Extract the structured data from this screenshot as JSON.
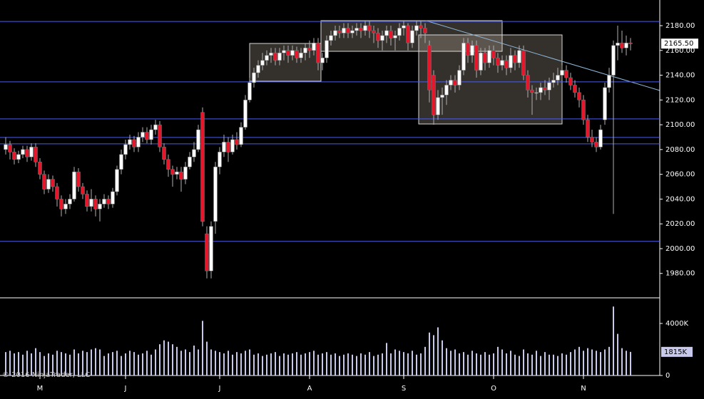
{
  "chart_data": [
    {
      "type": "candlestick",
      "watermark": "© 2016 NinjaTrader, LLC",
      "categories": [
        null,
        null,
        null,
        null,
        null,
        null,
        null,
        null,
        "M",
        null,
        null,
        null,
        null,
        null,
        null,
        null,
        null,
        null,
        null,
        null,
        null,
        null,
        null,
        null,
        null,
        null,
        null,
        null,
        "J",
        null,
        null,
        null,
        null,
        null,
        null,
        null,
        null,
        null,
        null,
        null,
        null,
        null,
        null,
        null,
        null,
        null,
        null,
        null,
        null,
        null,
        "J",
        null,
        null,
        null,
        null,
        null,
        null,
        null,
        null,
        null,
        null,
        null,
        null,
        null,
        null,
        null,
        null,
        null,
        null,
        null,
        null,
        "A",
        null,
        null,
        null,
        null,
        null,
        null,
        null,
        null,
        null,
        null,
        null,
        null,
        null,
        null,
        null,
        null,
        null,
        null,
        null,
        null,
        null,
        "S",
        null,
        null,
        null,
        null,
        null,
        null,
        null,
        null,
        null,
        null,
        null,
        null,
        null,
        null,
        null,
        null,
        null,
        null,
        null,
        null,
        "O",
        null,
        null,
        null,
        null,
        null,
        null,
        null,
        null,
        null,
        null,
        null,
        null,
        null,
        null,
        null,
        null,
        null,
        null,
        null,
        null,
        "N",
        null,
        null,
        null,
        null,
        null,
        null,
        null,
        null,
        null,
        null,
        null
      ],
      "open": [
        2080,
        2084,
        2078,
        2072,
        2076,
        2080,
        2074,
        2082,
        2070,
        2060,
        2048,
        2056,
        2050,
        2040,
        2032,
        2036,
        2040,
        2062,
        2050,
        2044,
        2034,
        2040,
        2032,
        2036,
        2040,
        2036,
        2046,
        2064,
        2076,
        2084,
        2088,
        2082,
        2090,
        2094,
        2088,
        2096,
        2100,
        2082,
        2072,
        2064,
        2060,
        2062,
        2056,
        2066,
        2074,
        2080,
        2110,
        2012,
        1982,
        2022,
        2066,
        2078,
        2086,
        2078,
        2088,
        2084,
        2098,
        2120,
        2134,
        2142,
        2148,
        2152,
        2156,
        2158,
        2152,
        2158,
        2160,
        2156,
        2160,
        2154,
        2158,
        2162,
        2160,
        2166,
        2150,
        2154,
        2168,
        2172,
        2176,
        2174,
        2178,
        2174,
        2176,
        2178,
        2176,
        2180,
        2176,
        2174,
        2168,
        2172,
        2176,
        2170,
        2172,
        2178,
        2180,
        2166,
        2176,
        2180,
        2178,
        2164,
        2140,
        2108,
        2122,
        2124,
        2132,
        2136,
        2132,
        2144,
        2166,
        2156,
        2164,
        2144,
        2158,
        2150,
        2160,
        2154,
        2148,
        2152,
        2146,
        2156,
        2150,
        2160,
        2140,
        2128,
        2126,
        2126,
        2130,
        2128,
        2134,
        2136,
        2140,
        2144,
        2138,
        2132,
        2126,
        2120,
        2104,
        2090,
        2086,
        2082,
        2104,
        2130,
        2140,
        2164,
        2166,
        2162,
        2166
      ],
      "high": [
        2090,
        2087,
        2081,
        2079,
        2083,
        2083,
        2085,
        2085,
        2073,
        2063,
        2060,
        2059,
        2053,
        2043,
        2040,
        2044,
        2066,
        2065,
        2053,
        2047,
        2048,
        2043,
        2040,
        2044,
        2043,
        2049,
        2067,
        2080,
        2088,
        2092,
        2091,
        2094,
        2098,
        2098,
        2100,
        2104,
        2103,
        2085,
        2076,
        2067,
        2066,
        2066,
        2070,
        2078,
        2086,
        2100,
        2114,
        2018,
        2022,
        2070,
        2082,
        2092,
        2090,
        2092,
        2094,
        2102,
        2124,
        2138,
        2146,
        2152,
        2158,
        2160,
        2162,
        2162,
        2162,
        2164,
        2164,
        2164,
        2163,
        2162,
        2166,
        2168,
        2170,
        2170,
        2158,
        2172,
        2176,
        2180,
        2180,
        2182,
        2182,
        2180,
        2182,
        2182,
        2184,
        2184,
        2180,
        2178,
        2176,
        2180,
        2180,
        2176,
        2182,
        2184,
        2182,
        2180,
        2184,
        2184,
        2182,
        2168,
        2144,
        2128,
        2130,
        2136,
        2140,
        2140,
        2148,
        2170,
        2170,
        2168,
        2168,
        2162,
        2162,
        2164,
        2164,
        2158,
        2156,
        2156,
        2162,
        2160,
        2164,
        2164,
        2144,
        2132,
        2130,
        2134,
        2136,
        2138,
        2142,
        2146,
        2148,
        2148,
        2142,
        2136,
        2130,
        2124,
        2108,
        2096,
        2090,
        2100,
        2134,
        2146,
        2168,
        2180,
        2176,
        2172,
        2170
      ],
      "low": [
        2076,
        2072,
        2068,
        2069,
        2073,
        2070,
        2071,
        2066,
        2056,
        2044,
        2045,
        2046,
        2034,
        2026,
        2028,
        2032,
        2038,
        2046,
        2040,
        2030,
        2030,
        2026,
        2022,
        2033,
        2032,
        2033,
        2043,
        2060,
        2072,
        2080,
        2078,
        2078,
        2086,
        2085,
        2084,
        2092,
        2078,
        2068,
        2058,
        2050,
        2056,
        2046,
        2052,
        2064,
        2070,
        2078,
        2018,
        1976,
        1976,
        2012,
        2060,
        2074,
        2070,
        2076,
        2080,
        2082,
        2096,
        2118,
        2130,
        2138,
        2144,
        2148,
        2150,
        2148,
        2148,
        2152,
        2150,
        2152,
        2150,
        2150,
        2152,
        2154,
        2156,
        2144,
        2144,
        2150,
        2164,
        2168,
        2170,
        2170,
        2170,
        2170,
        2172,
        2170,
        2172,
        2170,
        2166,
        2162,
        2160,
        2166,
        2164,
        2160,
        2168,
        2172,
        2160,
        2162,
        2172,
        2170,
        2166,
        2118,
        2100,
        2104,
        2108,
        2116,
        2128,
        2126,
        2128,
        2140,
        2150,
        2150,
        2138,
        2140,
        2144,
        2146,
        2148,
        2142,
        2144,
        2140,
        2142,
        2144,
        2146,
        2136,
        2122,
        2108,
        2120,
        2120,
        2124,
        2120,
        2130,
        2132,
        2136,
        2134,
        2128,
        2122,
        2114,
        2100,
        2086,
        2082,
        2078,
        2080,
        2100,
        2126,
        2028,
        2152,
        2158,
        2156,
        2160
      ],
      "close": [
        2084,
        2078,
        2072,
        2076,
        2080,
        2074,
        2082,
        2070,
        2060,
        2048,
        2056,
        2050,
        2040,
        2032,
        2036,
        2040,
        2062,
        2050,
        2044,
        2034,
        2040,
        2032,
        2036,
        2040,
        2036,
        2046,
        2064,
        2076,
        2084,
        2088,
        2082,
        2090,
        2094,
        2088,
        2096,
        2100,
        2082,
        2072,
        2064,
        2060,
        2062,
        2056,
        2066,
        2074,
        2080,
        2096,
        2022,
        1982,
        2018,
        2066,
        2078,
        2086,
        2078,
        2088,
        2084,
        2098,
        2120,
        2134,
        2142,
        2148,
        2152,
        2156,
        2158,
        2152,
        2158,
        2160,
        2156,
        2160,
        2154,
        2158,
        2162,
        2160,
        2166,
        2150,
        2154,
        2168,
        2172,
        2176,
        2174,
        2178,
        2174,
        2176,
        2178,
        2176,
        2180,
        2176,
        2174,
        2168,
        2172,
        2176,
        2170,
        2172,
        2178,
        2180,
        2166,
        2176,
        2180,
        2178,
        2174,
        2128,
        2108,
        2122,
        2124,
        2132,
        2136,
        2132,
        2144,
        2166,
        2156,
        2164,
        2144,
        2158,
        2150,
        2160,
        2154,
        2148,
        2152,
        2146,
        2156,
        2150,
        2160,
        2140,
        2128,
        2126,
        2126,
        2130,
        2128,
        2134,
        2136,
        2140,
        2144,
        2138,
        2132,
        2126,
        2120,
        2104,
        2090,
        2086,
        2082,
        2096,
        2130,
        2140,
        2164,
        2166,
        2162,
        2166,
        2165.5
      ],
      "up_color": "#ffffff",
      "down_color": "#e8162b",
      "wick_color": "#b0b0b0",
      "levels": [
        2183.4,
        2134.6,
        2104.7,
        2089.8,
        2084.6,
        2005.9
      ],
      "level_color": "#4a5ee8",
      "current_label": {
        "value": 2165.5,
        "label": "2165.50"
      },
      "ylim": [
        1960.3,
        2200.7
      ],
      "yticks": [
        {
          "value": 1980,
          "label": "1980.00"
        },
        {
          "value": 2000,
          "label": "2000.00"
        },
        {
          "value": 2020,
          "label": "2020.00"
        },
        {
          "value": 2040,
          "label": "2040.00"
        },
        {
          "value": 2060,
          "label": "2060.00"
        },
        {
          "value": 2080,
          "label": "2080.00"
        },
        {
          "value": 2100,
          "label": "2100.00"
        },
        {
          "value": 2120,
          "label": "2120.00"
        },
        {
          "value": 2140,
          "label": "2140.00"
        },
        {
          "value": 2160,
          "label": "2160.00"
        },
        {
          "value": 2180,
          "label": "2180.00"
        }
      ]
    },
    {
      "type": "bar",
      "values": [
        1800,
        1900,
        1700,
        1800,
        1600,
        1900,
        1700,
        2100,
        1800,
        1500,
        1700,
        1600,
        1900,
        1800,
        1700,
        1600,
        2000,
        1700,
        1900,
        1800,
        2000,
        2100,
        2000,
        1500,
        1700,
        1800,
        1900,
        1500,
        1700,
        1900,
        1800,
        1600,
        1700,
        1900,
        1600,
        2000,
        2400,
        2700,
        2600,
        2400,
        2200,
        1900,
        2000,
        1800,
        2300,
        2000,
        4200,
        2600,
        2000,
        1900,
        1800,
        1700,
        1900,
        1600,
        1800,
        1700,
        1900,
        2000,
        1600,
        1700,
        1500,
        1600,
        1700,
        1800,
        1500,
        1700,
        1600,
        1700,
        1800,
        1600,
        1700,
        1800,
        1900,
        1600,
        1700,
        1800,
        1600,
        1700,
        1500,
        1600,
        1700,
        1600,
        1500,
        1700,
        1600,
        1800,
        1500,
        1600,
        1700,
        2500,
        1700,
        2000,
        1900,
        1800,
        1700,
        1900,
        1600,
        1700,
        2200,
        3300,
        3100,
        3700,
        2700,
        2100,
        1900,
        2000,
        1700,
        1800,
        1600,
        1900,
        1700,
        1600,
        1800,
        1600,
        1700,
        2200,
        2000,
        1700,
        1900,
        1600,
        1500,
        2000,
        1700,
        1600,
        1900,
        1500,
        1800,
        1600,
        1600,
        1500,
        1700,
        1600,
        1800,
        2000,
        2200,
        1900,
        2100,
        2000,
        1900,
        1800,
        2000,
        2200,
        5300,
        3200,
        2100,
        1900,
        1815
      ],
      "color": "#c9c9ee",
      "current_label": {
        "value": 1815,
        "label": "1815K"
      },
      "ylim": [
        0,
        5860
      ],
      "yticks": [
        {
          "value": 0,
          "label": "0"
        },
        {
          "value": 4000,
          "label": "4000K"
        }
      ]
    }
  ]
}
